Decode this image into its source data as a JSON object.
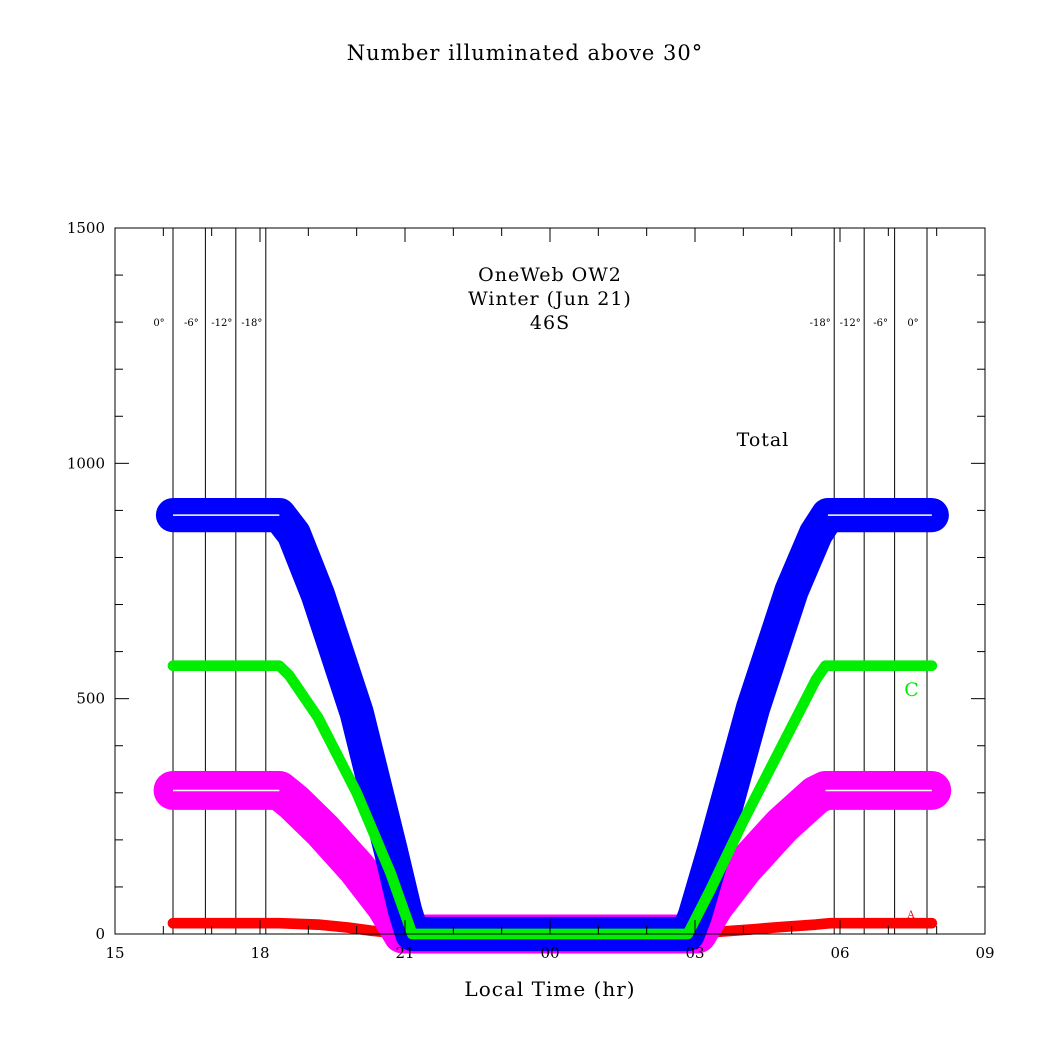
{
  "chart_data": {
    "type": "line",
    "title": "Number illuminated above 30°",
    "annotations": [
      "OneWeb OW2",
      "Winter (Jun 21)",
      "46S"
    ],
    "total_label": "Total",
    "xlabel": "Local Time (hr)",
    "ylabel": "",
    "xlim": [
      15,
      33
    ],
    "ylim": [
      0,
      1500
    ],
    "x_ticks": [
      {
        "x": 15,
        "label": "15"
      },
      {
        "x": 18,
        "label": "18"
      },
      {
        "x": 21,
        "label": "21"
      },
      {
        "x": 24,
        "label": "00"
      },
      {
        "x": 27,
        "label": "03"
      },
      {
        "x": 30,
        "label": "06"
      },
      {
        "x": 33,
        "label": "09"
      }
    ],
    "y_ticks": [
      {
        "y": 0,
        "label": "0"
      },
      {
        "y": 500,
        "label": "500"
      },
      {
        "y": 1000,
        "label": "1000"
      },
      {
        "y": 1500,
        "label": "1500"
      }
    ],
    "twilight_lines": [
      {
        "x": 16.2,
        "label": "0°"
      },
      {
        "x": 16.87,
        "label": "-6°"
      },
      {
        "x": 17.5,
        "label": "-12°"
      },
      {
        "x": 18.12,
        "label": "-18°"
      },
      {
        "x": 29.88,
        "label": "-18°"
      },
      {
        "x": 30.5,
        "label": "-12°"
      },
      {
        "x": 31.13,
        "label": "-6°"
      },
      {
        "x": 31.8,
        "label": "0°"
      }
    ],
    "series": [
      {
        "name": "Total",
        "color": "#0000ff",
        "band": [
          860,
          920
        ],
        "points": [
          [
            16.2,
            890
          ],
          [
            18.4,
            890
          ],
          [
            18.7,
            850
          ],
          [
            19.2,
            720
          ],
          [
            20.0,
            470
          ],
          [
            20.7,
            180
          ],
          [
            21.0,
            50
          ],
          [
            21.15,
            0
          ],
          [
            26.85,
            0
          ],
          [
            27.0,
            40
          ],
          [
            27.4,
            180
          ],
          [
            28.2,
            480
          ],
          [
            29.0,
            730
          ],
          [
            29.5,
            850
          ],
          [
            29.75,
            890
          ],
          [
            31.9,
            890
          ]
        ]
      },
      {
        "name": "C",
        "color": "#00ee00",
        "band": [
          565,
          575
        ],
        "points": [
          [
            16.2,
            570
          ],
          [
            18.4,
            570
          ],
          [
            18.6,
            550
          ],
          [
            19.2,
            460
          ],
          [
            20.0,
            300
          ],
          [
            20.7,
            130
          ],
          [
            21.15,
            0
          ],
          [
            26.85,
            0
          ],
          [
            27.3,
            90
          ],
          [
            28.0,
            240
          ],
          [
            28.8,
            400
          ],
          [
            29.5,
            540
          ],
          [
            29.7,
            570
          ],
          [
            31.9,
            570
          ]
        ]
      },
      {
        "name": "",
        "color": "#ff00ff",
        "band": [
          270,
          340
        ],
        "points": [
          [
            16.2,
            305
          ],
          [
            18.4,
            305
          ],
          [
            18.7,
            280
          ],
          [
            19.3,
            220
          ],
          [
            20.0,
            140
          ],
          [
            20.6,
            60
          ],
          [
            20.95,
            0
          ],
          [
            27.05,
            0
          ],
          [
            27.4,
            60
          ],
          [
            28.0,
            140
          ],
          [
            28.8,
            230
          ],
          [
            29.5,
            295
          ],
          [
            29.7,
            305
          ],
          [
            31.9,
            305
          ]
        ]
      },
      {
        "name": "A",
        "color": "#ff0000",
        "band": [
          18,
          28
        ],
        "points": [
          [
            16.2,
            23
          ],
          [
            18.4,
            23
          ],
          [
            19.2,
            20
          ],
          [
            19.8,
            14
          ],
          [
            20.3,
            7
          ],
          [
            20.8,
            2
          ],
          [
            21.1,
            0
          ],
          [
            26.9,
            0
          ],
          [
            27.4,
            4
          ],
          [
            28.2,
            10
          ],
          [
            28.8,
            15
          ],
          [
            29.5,
            20
          ],
          [
            29.8,
            23
          ],
          [
            31.9,
            23
          ]
        ]
      }
    ],
    "series_labels": {
      "c": "C",
      "a": "A"
    }
  }
}
